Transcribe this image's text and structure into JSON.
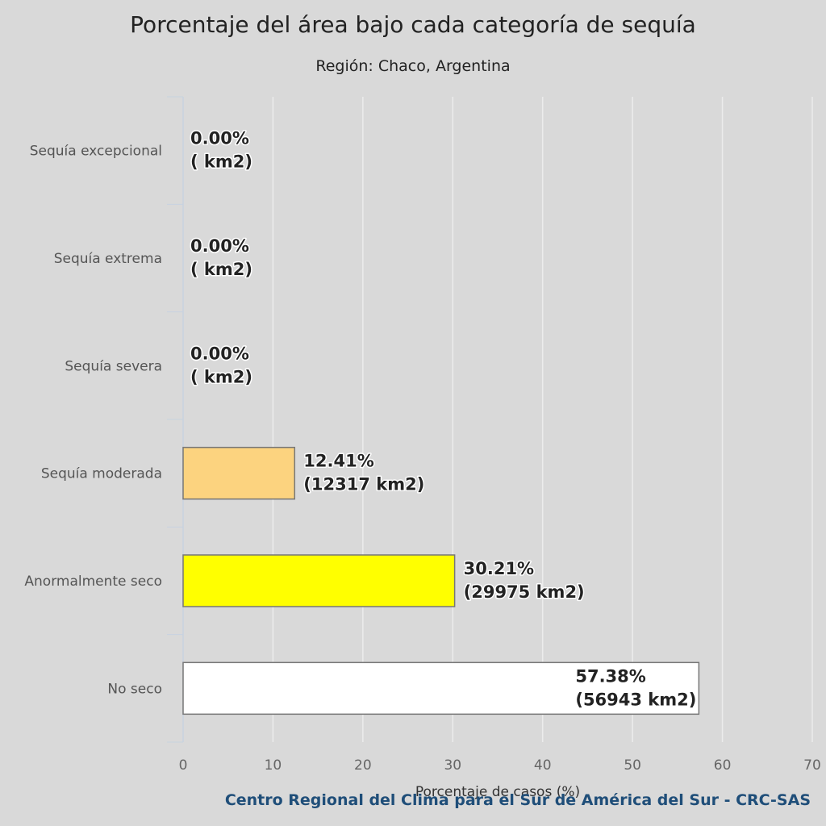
{
  "chart_data": {
    "type": "bar",
    "orientation": "horizontal",
    "title": "Porcentaje del área bajo cada categoría de sequía",
    "subtitle": "Región: Chaco, Argentina",
    "categories": [
      "Sequía excepcional",
      "Sequía extrema",
      "Sequía severa",
      "Sequía moderada",
      "Anormalmente seco",
      "No seco"
    ],
    "values": [
      0.0,
      0.0,
      0.0,
      12.41,
      30.21,
      57.38
    ],
    "data_labels": [
      [
        "0.00%",
        "( km2)"
      ],
      [
        "0.00%",
        "( km2)"
      ],
      [
        "0.00%",
        "( km2)"
      ],
      [
        "12.41%",
        "(12317 km2)"
      ],
      [
        "30.21%",
        "(29975 km2)"
      ],
      [
        "57.38%",
        "(56943 km2)"
      ]
    ],
    "colors": [
      "#730000",
      "#e60000",
      "#ffaa00",
      "#fcd37f",
      "#ffff00",
      "#ffffff"
    ],
    "xlabel": "Porcentaje de casos (%)",
    "ylabel": "",
    "xlim": [
      0,
      70
    ],
    "xticks": [
      0,
      10,
      20,
      30,
      40,
      50,
      60,
      70
    ],
    "grid": true,
    "legend": "none",
    "credit": "Centro Regional del Clima para el Sur de América del Sur - CRC-SAS"
  }
}
